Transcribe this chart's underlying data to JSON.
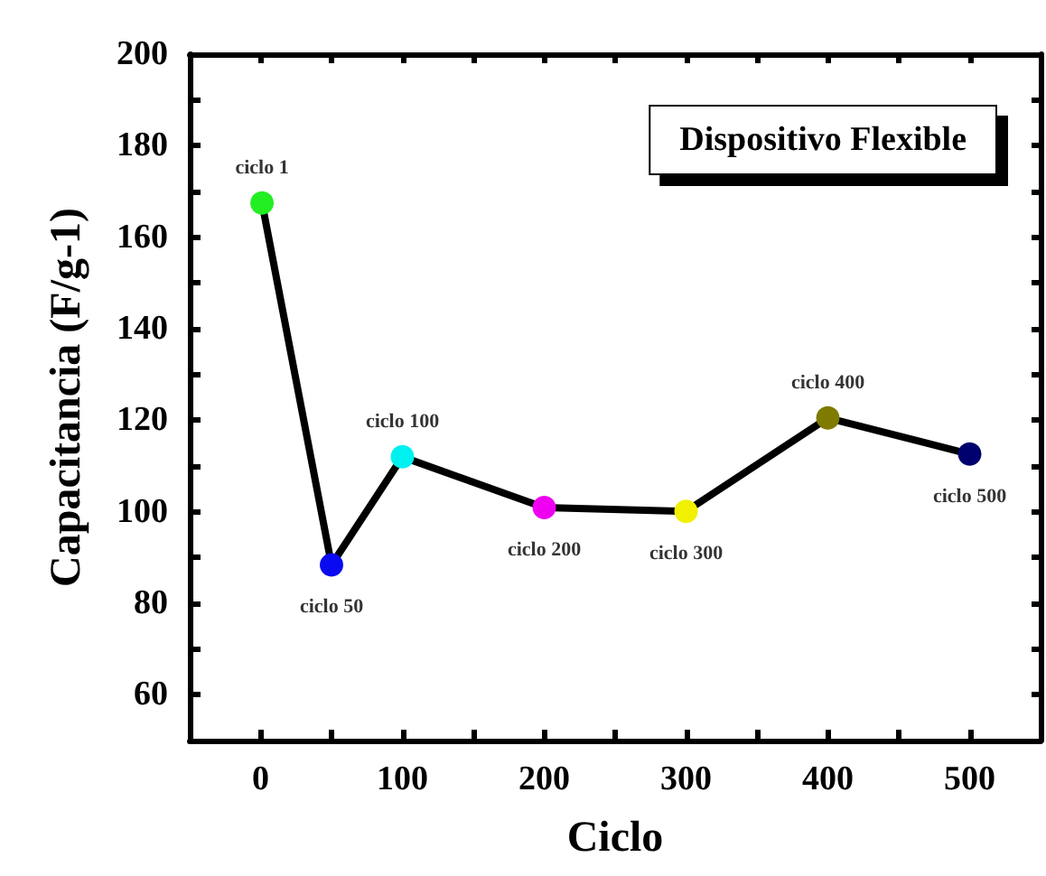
{
  "chart_data": {
    "type": "line",
    "xlabel": "Ciclo",
    "ylabel": "Capacitancia (F/g-1)",
    "x": [
      1,
      50,
      100,
      200,
      300,
      400,
      500
    ],
    "series": [
      {
        "color": "#000000",
        "values": [
          167.5,
          88.4,
          112,
          100.9,
          100.1,
          120.5,
          112.6
        ],
        "colors": [
          "#22ee22",
          "#0a0af0",
          "#00f0f0",
          "#f000f0",
          "#f0f000",
          "#7f7a00",
          "#00006e"
        ]
      }
    ],
    "xlim": [
      -50,
      550
    ],
    "xticks": [
      0,
      100,
      200,
      300,
      400,
      500
    ],
    "ylim": [
      50,
      200
    ],
    "yticks": [
      60,
      80,
      100,
      120,
      140,
      160,
      180,
      200
    ],
    "grid": false,
    "marker": "circle",
    "line_style": "solid",
    "annotations": [
      "Dispositivo Flexible",
      {
        "text": "ciclo 1",
        "x": 1,
        "y": 167.5
      },
      {
        "text": "ciclo 50",
        "x": 50,
        "y": 88.4
      },
      {
        "text": "ciclo 100",
        "x": 100,
        "y": 112
      },
      {
        "text": "ciclo 200",
        "x": 200,
        "y": 100.9
      },
      {
        "text": "ciclo 300",
        "x": 300,
        "y": 100.1
      },
      {
        "text": "ciclo 400",
        "x": 400,
        "y": 120.5
      },
      {
        "text": "ciclo 500",
        "x": 500,
        "y": 112.6
      }
    ]
  }
}
